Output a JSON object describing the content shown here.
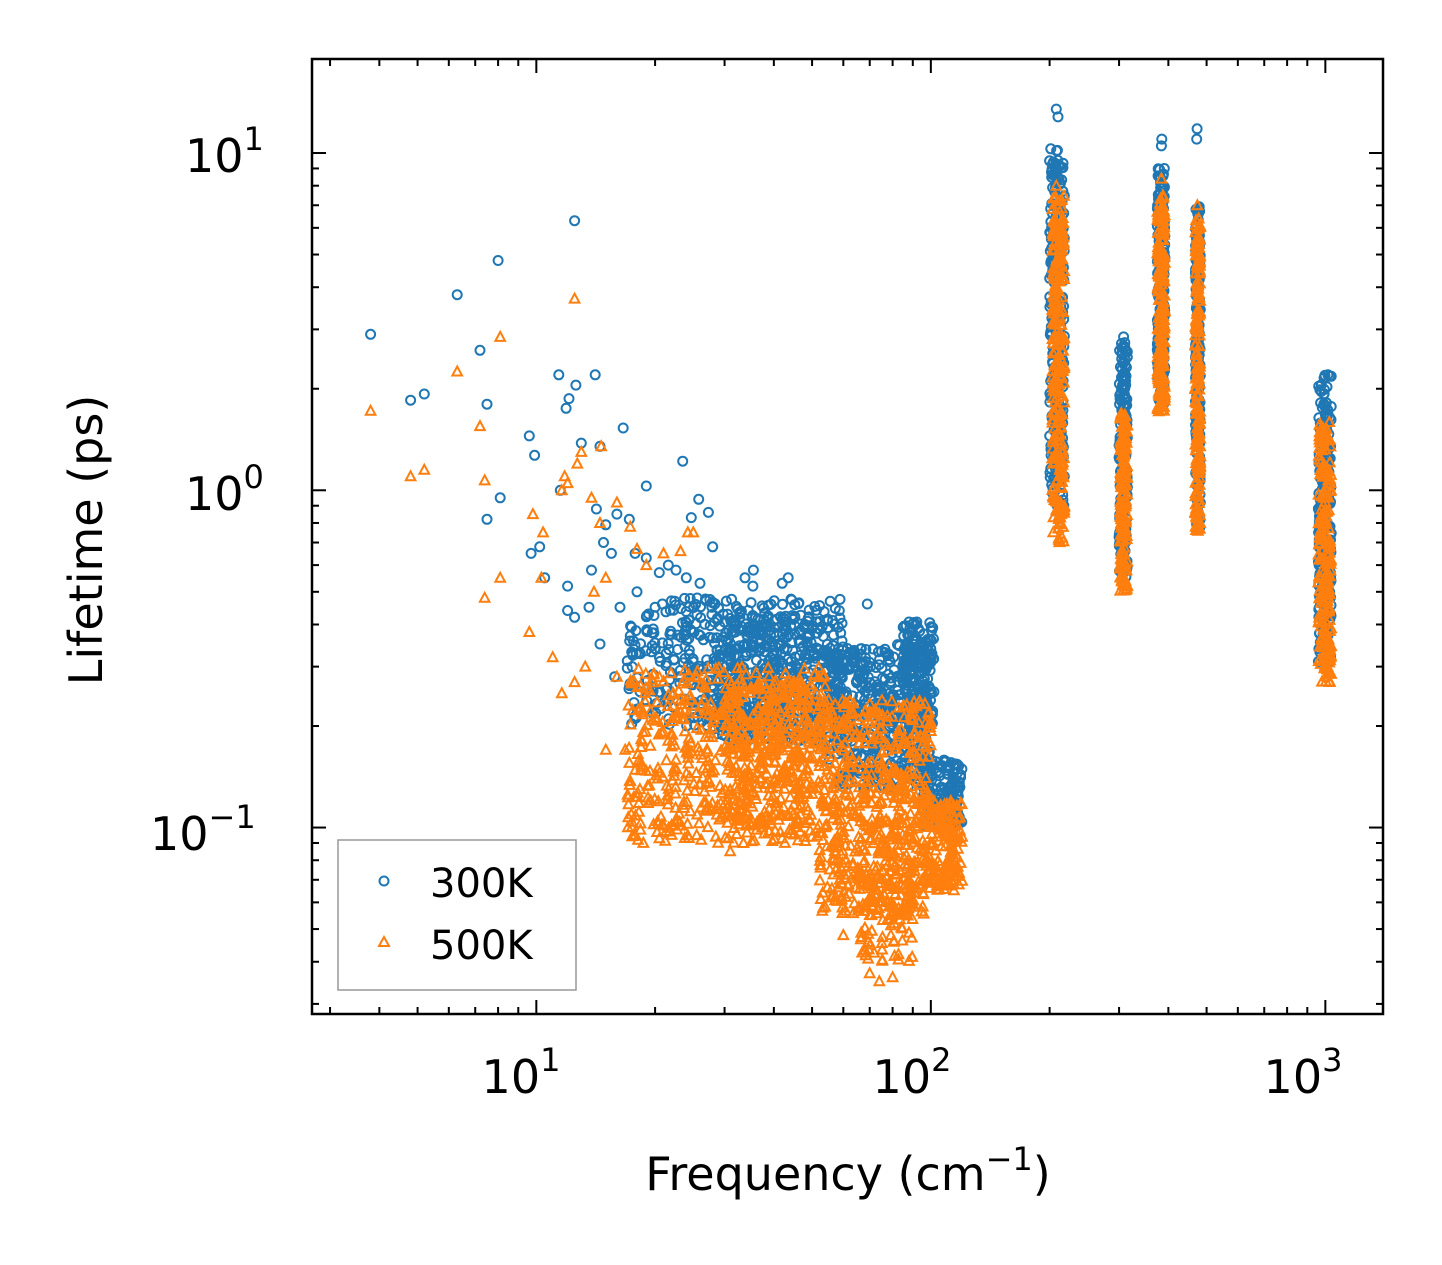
{
  "chart_data": {
    "type": "scatter",
    "title": "",
    "xlabel": "Frequency (cm",
    "xlabel_sup": "−1",
    "xlabel_end": ")",
    "ylabel": "Lifetime (ps)",
    "xscale": "log",
    "yscale": "log",
    "xlim": [
      2.7,
      1400
    ],
    "ylim": [
      0.028,
      19
    ],
    "x_ticks": [
      {
        "base": "10",
        "exp": "1",
        "value": 10
      },
      {
        "base": "10",
        "exp": "2",
        "value": 100
      },
      {
        "base": "10",
        "exp": "3",
        "value": 1000
      }
    ],
    "y_ticks": [
      {
        "base": "10",
        "exp": "−1",
        "value": 0.1
      },
      {
        "base": "10",
        "exp": "0",
        "value": 1
      },
      {
        "base": "10",
        "exp": "1",
        "value": 10
      }
    ],
    "legend": {
      "location": "lower-left"
    },
    "series": [
      {
        "name": "300K",
        "marker": "circle-open",
        "color": "#1f77b4",
        "points": [
          [
            3.8,
            2.9
          ],
          [
            4.8,
            1.85
          ],
          [
            5.2,
            1.93
          ],
          [
            6.3,
            3.8
          ],
          [
            7.2,
            2.6
          ],
          [
            7.5,
            1.8
          ],
          [
            8.0,
            4.8
          ],
          [
            7.5,
            0.82
          ],
          [
            8.1,
            0.95
          ],
          [
            9.6,
            1.45
          ],
          [
            9.9,
            1.27
          ],
          [
            10.2,
            0.68
          ],
          [
            10.5,
            0.55
          ],
          [
            9.7,
            0.65
          ],
          [
            11.4,
            2.2
          ],
          [
            11.9,
            1.75
          ],
          [
            12.1,
            1.87
          ],
          [
            12.5,
            6.3
          ],
          [
            12.6,
            2.05
          ],
          [
            11.5,
            1.0
          ],
          [
            12.0,
            0.52
          ],
          [
            12.0,
            0.44
          ],
          [
            14.1,
            2.2
          ],
          [
            13.0,
            1.38
          ],
          [
            14.5,
            1.35
          ],
          [
            14.2,
            0.88
          ],
          [
            14.8,
            0.7
          ],
          [
            15.0,
            0.79
          ],
          [
            16.0,
            0.85
          ],
          [
            16.6,
            1.53
          ],
          [
            17.2,
            0.82
          ],
          [
            13.8,
            0.58
          ],
          [
            13.6,
            0.45
          ],
          [
            15.5,
            0.65
          ],
          [
            17.8,
            0.65
          ],
          [
            19.0,
            0.63
          ],
          [
            19.0,
            1.03
          ],
          [
            20.5,
            0.57
          ],
          [
            21.6,
            0.6
          ],
          [
            22.6,
            0.58
          ],
          [
            23.5,
            1.22
          ],
          [
            24.7,
            0.83
          ],
          [
            25.8,
            0.94
          ],
          [
            27.3,
            0.86
          ],
          [
            28.0,
            0.68
          ],
          [
            24.0,
            0.55
          ],
          [
            26.0,
            0.53
          ],
          [
            16.3,
            0.45
          ],
          [
            18.0,
            0.5
          ],
          [
            33.8,
            0.55
          ],
          [
            35.5,
            0.58
          ],
          [
            35.4,
            0.52
          ],
          [
            42.0,
            0.53
          ],
          [
            43.5,
            0.55
          ],
          [
            69.0,
            0.46
          ],
          [
            20.0,
            0.45
          ],
          [
            22.0,
            0.47
          ],
          [
            15.8,
            0.28
          ],
          [
            17.5,
            0.3
          ],
          [
            14.5,
            0.35
          ],
          [
            12.5,
            0.42
          ]
        ],
        "clusters": [
          {
            "x_range": [
              17,
              60
            ],
            "y_range": [
              0.2,
              0.48
            ],
            "count": 500
          },
          {
            "x_range": [
              28,
              55
            ],
            "y_range": [
              0.18,
              0.42
            ],
            "count": 300
          },
          {
            "x_range": [
              55,
              100
            ],
            "y_range": [
              0.13,
              0.35
            ],
            "count": 450
          },
          {
            "x_range": [
              85,
              102
            ],
            "y_range": [
              0.2,
              0.41
            ],
            "count": 180
          },
          {
            "x_range": [
              95,
              120
            ],
            "y_range": [
              0.1,
              0.16
            ],
            "count": 160
          },
          {
            "x_range": [
              200,
              218
            ],
            "y_range": [
              0.9,
              10.5
            ],
            "count": 260
          },
          {
            "x_range": [
              300,
              315
            ],
            "y_range": [
              0.55,
              2.8
            ],
            "count": 160
          },
          {
            "x_range": [
              375,
              392
            ],
            "y_range": [
              1.8,
              9.0
            ],
            "count": 200
          },
          {
            "x_range": [
              468,
              482
            ],
            "y_range": [
              0.75,
              7.0
            ],
            "count": 200
          },
          {
            "x_range": [
              960,
              1035
            ],
            "y_range": [
              0.3,
              2.2
            ],
            "count": 220
          }
        ],
        "extra_points": [
          [
            208,
            13.5
          ],
          [
            210,
            12.8
          ],
          [
            385,
            11.0
          ],
          [
            473,
            11.8
          ],
          [
            472,
            11.0
          ],
          [
            308,
            2.85
          ],
          [
            1015,
            2.2
          ],
          [
            384,
            10.5
          ]
        ]
      },
      {
        "name": "500K",
        "marker": "triangle-open",
        "color": "#ff7f0e",
        "points": [
          [
            3.8,
            1.72
          ],
          [
            4.8,
            1.1
          ],
          [
            5.2,
            1.15
          ],
          [
            6.3,
            2.25
          ],
          [
            7.2,
            1.55
          ],
          [
            7.4,
            1.07
          ],
          [
            8.1,
            2.85
          ],
          [
            7.4,
            0.48
          ],
          [
            8.1,
            0.55
          ],
          [
            9.8,
            0.85
          ],
          [
            10.4,
            0.75
          ],
          [
            11.6,
            1.0
          ],
          [
            12.5,
            3.7
          ],
          [
            12.7,
            1.2
          ],
          [
            13.0,
            1.3
          ],
          [
            12.0,
            1.05
          ],
          [
            11.8,
            1.1
          ],
          [
            13.8,
            0.95
          ],
          [
            14.5,
            0.8
          ],
          [
            14.6,
            1.35
          ],
          [
            16.0,
            0.92
          ],
          [
            17.3,
            0.78
          ],
          [
            18.0,
            0.67
          ],
          [
            19.0,
            0.6
          ],
          [
            21.0,
            0.65
          ],
          [
            23.2,
            0.66
          ],
          [
            24.2,
            0.75
          ],
          [
            25.0,
            0.75
          ],
          [
            10.3,
            0.55
          ],
          [
            9.6,
            0.38
          ],
          [
            11.0,
            0.32
          ],
          [
            11.6,
            0.25
          ],
          [
            12.5,
            0.27
          ],
          [
            13.3,
            0.3
          ],
          [
            14.0,
            0.5
          ],
          [
            15.0,
            0.55
          ],
          [
            16.0,
            0.28
          ],
          [
            15.0,
            0.17
          ],
          [
            16.8,
            0.17
          ],
          [
            18.5,
            0.22
          ],
          [
            18.3,
            0.13
          ],
          [
            19.5,
            0.12
          ],
          [
            23.0,
            0.11
          ],
          [
            25.5,
            0.095
          ],
          [
            31.0,
            0.085
          ],
          [
            33.5,
            0.09
          ]
        ],
        "clusters": [
          {
            "x_range": [
              17,
              55
            ],
            "y_range": [
              0.09,
              0.3
            ],
            "count": 550
          },
          {
            "x_range": [
              30,
              50
            ],
            "y_range": [
              0.1,
              0.28
            ],
            "count": 250
          },
          {
            "x_range": [
              52,
              100
            ],
            "y_range": [
              0.055,
              0.24
            ],
            "count": 550
          },
          {
            "x_range": [
              65,
              90
            ],
            "y_range": [
              0.04,
              0.1
            ],
            "count": 130
          },
          {
            "x_range": [
              95,
              120
            ],
            "y_range": [
              0.065,
              0.12
            ],
            "count": 160
          },
          {
            "x_range": [
              203,
              218
            ],
            "y_range": [
              0.7,
              7.5
            ],
            "count": 260
          },
          {
            "x_range": [
              302,
              315
            ],
            "y_range": [
              0.5,
              1.7
            ],
            "count": 160
          },
          {
            "x_range": [
              375,
              392
            ],
            "y_range": [
              1.7,
              7.5
            ],
            "count": 200
          },
          {
            "x_range": [
              468,
              482
            ],
            "y_range": [
              0.75,
              6.5
            ],
            "count": 200
          },
          {
            "x_range": [
              960,
              1035
            ],
            "y_range": [
              0.26,
              1.6
            ],
            "count": 220
          }
        ],
        "extra_points": [
          [
            208,
            8.0
          ],
          [
            384,
            8.4
          ],
          [
            474,
            7.0
          ],
          [
            74,
            0.035
          ],
          [
            80,
            0.036
          ],
          [
            70,
            0.037
          ],
          [
            60,
            0.048
          ]
        ]
      }
    ]
  }
}
